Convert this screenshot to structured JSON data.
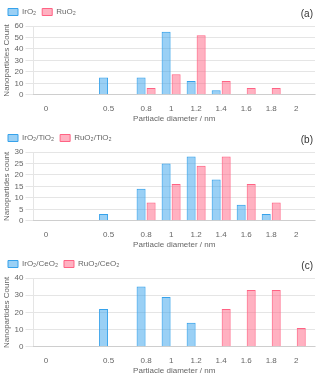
{
  "chart_data": [
    {
      "type": "bar",
      "title": "(a)",
      "xlabel": "Partiacle diameter / nm",
      "ylabel": "Nanoparticles Count",
      "x": [
        0,
        0.5,
        0.8,
        1,
        1.2,
        1.4,
        1.6,
        1.8,
        2
      ],
      "xlim": [
        -0.1,
        2.15
      ],
      "xticks": [
        0,
        0.5,
        0.8,
        1,
        1.2,
        1.4,
        1.6,
        1.8,
        2
      ],
      "ylim": [
        0,
        60
      ],
      "yticks": [
        0,
        10,
        20,
        30,
        40,
        50,
        60
      ],
      "grid": "y",
      "legend": "upper left",
      "series": [
        {
          "name": "IrO₂",
          "values": [
            0,
            15,
            15,
            55,
            12,
            4,
            0,
            0,
            0
          ]
        },
        {
          "name": "RuO₂",
          "values": [
            0,
            0,
            6,
            18,
            52,
            12,
            6,
            6,
            0
          ]
        }
      ]
    },
    {
      "type": "bar",
      "title": "(b)",
      "xlabel": "Partiacle diameter / nm",
      "ylabel": "Nanopartides count",
      "x": [
        0,
        0.5,
        0.8,
        1,
        1.2,
        1.4,
        1.6,
        1.8,
        2
      ],
      "xlim": [
        -0.1,
        2.15
      ],
      "xticks": [
        0,
        0.5,
        0.8,
        1,
        1.2,
        1.4,
        1.6,
        1.8,
        2
      ],
      "ylim": [
        0,
        30
      ],
      "yticks": [
        0,
        5,
        10,
        15,
        20,
        25,
        30
      ],
      "grid": "y",
      "legend": "upper left",
      "series": [
        {
          "name": "IrO₂/TiO₂",
          "values": [
            0,
            3,
            14,
            25,
            28,
            18,
            7,
            3,
            0
          ]
        },
        {
          "name": "RuO₂/TiO₂",
          "values": [
            0,
            0,
            8,
            16,
            24,
            28,
            16,
            8,
            0
          ]
        }
      ]
    },
    {
      "type": "bar",
      "title": "(c)",
      "xlabel": "Partiacle diameter / nm",
      "ylabel": "Nanopartides Count",
      "x": [
        0,
        0.5,
        0.8,
        1,
        1.2,
        1.4,
        1.6,
        1.8,
        2
      ],
      "xlim": [
        -0.1,
        2.15
      ],
      "xticks": [
        0,
        0.5,
        0.8,
        1,
        1.2,
        1.4,
        1.6,
        1.8,
        2
      ],
      "ylim": [
        0,
        40
      ],
      "yticks": [
        0,
        10,
        20,
        30,
        40
      ],
      "grid": "y",
      "legend": "upper left",
      "series": [
        {
          "name": "IrO₂/CeO₂",
          "values": [
            0,
            22,
            35,
            29,
            14,
            0,
            0,
            0,
            0
          ]
        },
        {
          "name": "RuO₂/CeO₂",
          "values": [
            0,
            0,
            0,
            0,
            0,
            22,
            33,
            33,
            11
          ]
        }
      ]
    }
  ]
}
